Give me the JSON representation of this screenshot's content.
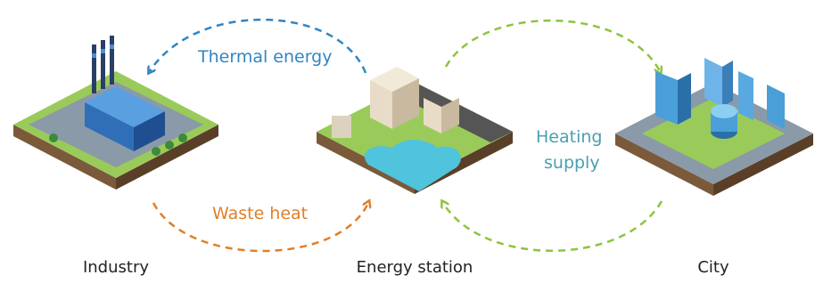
{
  "nodes": [
    {
      "label": "Industry"
    },
    {
      "label": "Energy station"
    },
    {
      "label": "City"
    }
  ],
  "flows": [
    {
      "label": "Thermal energy"
    },
    {
      "label": "Waste heat"
    },
    {
      "lines": [
        "Heating",
        "supply"
      ]
    }
  ]
}
